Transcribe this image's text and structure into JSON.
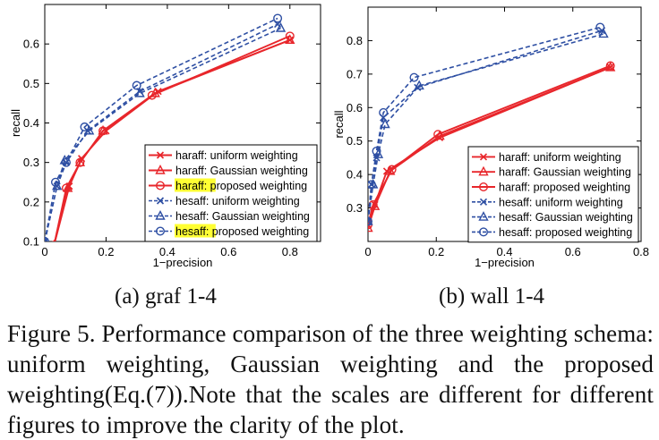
{
  "subfigures": [
    {
      "label": "(a)  graf 1-4"
    },
    {
      "label": "(b)  wall 1-4"
    }
  ],
  "caption": "Figure 5. Performance comparison of the three weighting schema: uniform weighting, Gaussian weighting and the proposed weighting(Eq.(7)).Note that the scales are different for different figures to improve the clarity of the plot.",
  "colors": {
    "haraff": "#e8262b",
    "hesaff": "#2e4fa3",
    "highlight": "#ffff33"
  },
  "chart_data": [
    {
      "type": "line",
      "xlabel": "1−precision",
      "ylabel": "recall",
      "xlim": [
        0,
        0.9
      ],
      "ylim": [
        0.1,
        0.7
      ],
      "xticks": [
        0,
        0.2,
        0.4,
        0.6,
        0.8
      ],
      "xtick_labels": [
        "0",
        "0.2",
        "0.4",
        "0.6",
        "0.8"
      ],
      "yticks": [
        0.1,
        0.2,
        0.3,
        0.4,
        0.5,
        0.6
      ],
      "ytick_labels": [
        "0.1",
        "0.2",
        "0.3",
        "0.4",
        "0.5",
        "0.6"
      ],
      "grid": false,
      "legend_position": "bottom-right",
      "series": [
        {
          "name": "haraff: uniform weighting",
          "group": "haraff",
          "marker": "x",
          "dash": false,
          "x": [
            0.03,
            0.08,
            0.12,
            0.2,
            0.37,
            0.8
          ],
          "y": [
            0.09,
            0.24,
            0.31,
            0.38,
            0.48,
            0.61
          ]
        },
        {
          "name": "haraff: Gaussian weighting",
          "group": "haraff",
          "marker": "triangle",
          "dash": false,
          "x": [
            0.03,
            0.075,
            0.115,
            0.19,
            0.36,
            0.8
          ],
          "y": [
            0.09,
            0.235,
            0.3,
            0.38,
            0.475,
            0.61
          ]
        },
        {
          "name": "haraff: proposed weighting",
          "group": "haraff",
          "marker": "circle",
          "dash": false,
          "highlight": "haraff",
          "x": [
            0.03,
            0.07,
            0.115,
            0.19,
            0.35,
            0.8
          ],
          "y": [
            0.09,
            0.235,
            0.3,
            0.38,
            0.47,
            0.62
          ]
        },
        {
          "name": "hesaff: uniform weighting",
          "group": "hesaff",
          "marker": "x",
          "dash": true,
          "x": [
            0.0,
            0.04,
            0.07,
            0.14,
            0.31,
            0.76
          ],
          "y": [
            0.1,
            0.24,
            0.3,
            0.38,
            0.48,
            0.65
          ]
        },
        {
          "name": "hesaff: Gaussian weighting",
          "group": "hesaff",
          "marker": "triangle",
          "dash": true,
          "x": [
            0.0,
            0.04,
            0.065,
            0.145,
            0.31,
            0.77
          ],
          "y": [
            0.1,
            0.24,
            0.305,
            0.38,
            0.475,
            0.64
          ]
        },
        {
          "name": "hesaff: proposed weighting",
          "group": "hesaff",
          "marker": "circle",
          "dash": true,
          "highlight": "hesaff",
          "x": [
            0.0,
            0.035,
            0.07,
            0.13,
            0.3,
            0.76
          ],
          "y": [
            0.1,
            0.25,
            0.3,
            0.39,
            0.495,
            0.665
          ]
        }
      ]
    },
    {
      "type": "line",
      "xlabel": "1−precision",
      "ylabel": "recall",
      "xlim": [
        0,
        0.8
      ],
      "ylim": [
        0.2,
        0.9
      ],
      "xticks": [
        0,
        0.2,
        0.4,
        0.6,
        0.8
      ],
      "xtick_labels": [
        "0",
        "0.2",
        "0.4",
        "0.6",
        "0.8"
      ],
      "yticks": [
        0.3,
        0.4,
        0.5,
        0.6,
        0.7,
        0.8
      ],
      "ytick_labels": [
        "0.3",
        "0.4",
        "0.5",
        "0.6",
        "0.7",
        "0.8"
      ],
      "grid": false,
      "legend_position": "bottom-right",
      "series": [
        {
          "name": "haraff: uniform weighting",
          "group": "haraff",
          "marker": "x",
          "dash": false,
          "x": [
            0.0,
            0.02,
            0.055,
            0.21,
            0.71
          ],
          "y": [
            0.25,
            0.31,
            0.41,
            0.51,
            0.72
          ]
        },
        {
          "name": "haraff: Gaussian weighting",
          "group": "haraff",
          "marker": "triangle",
          "dash": false,
          "x": [
            0.0,
            0.02,
            0.065,
            0.21,
            0.71
          ],
          "y": [
            0.24,
            0.305,
            0.41,
            0.515,
            0.72
          ]
        },
        {
          "name": "haraff: proposed weighting",
          "group": "haraff",
          "marker": "circle",
          "dash": false,
          "x": [
            0.0,
            0.015,
            0.07,
            0.205,
            0.71
          ],
          "y": [
            0.25,
            0.31,
            0.415,
            0.52,
            0.725
          ]
        },
        {
          "name": "hesaff: uniform weighting",
          "group": "hesaff",
          "marker": "x",
          "dash": true,
          "x": [
            0.0,
            0.01,
            0.025,
            0.045,
            0.145,
            0.685
          ],
          "y": [
            0.26,
            0.37,
            0.45,
            0.57,
            0.66,
            0.83
          ]
        },
        {
          "name": "hesaff: Gaussian weighting",
          "group": "hesaff",
          "marker": "triangle",
          "dash": true,
          "x": [
            0.0,
            0.015,
            0.03,
            0.05,
            0.15,
            0.69
          ],
          "y": [
            0.26,
            0.37,
            0.46,
            0.55,
            0.665,
            0.82
          ]
        },
        {
          "name": "hesaff: proposed weighting",
          "group": "hesaff",
          "marker": "circle",
          "dash": true,
          "x": [
            0.0,
            0.01,
            0.025,
            0.045,
            0.135,
            0.68
          ],
          "y": [
            0.26,
            0.37,
            0.47,
            0.585,
            0.69,
            0.84
          ]
        }
      ]
    }
  ]
}
